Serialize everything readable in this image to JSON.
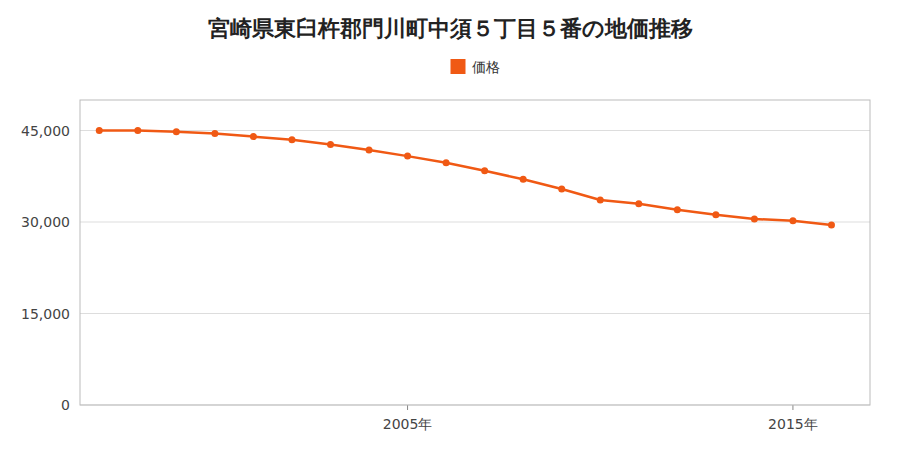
{
  "chart_data": {
    "type": "line",
    "title": "宮崎県東臼杵郡門川町中須５丁目５番の地価推移",
    "x": [
      1997,
      1998,
      1999,
      2000,
      2001,
      2002,
      2003,
      2004,
      2005,
      2006,
      2007,
      2008,
      2009,
      2010,
      2011,
      2012,
      2013,
      2014,
      2015,
      2016
    ],
    "series": [
      {
        "name": "価格",
        "color": "#f05914",
        "marker": "circle",
        "values": [
          45000,
          45000,
          44800,
          44500,
          44000,
          43500,
          42700,
          41800,
          40800,
          39700,
          38400,
          37000,
          35400,
          33600,
          33000,
          32000,
          31200,
          30500,
          30200,
          29500
        ]
      }
    ],
    "xlim": [
      1996.5,
      2017.0
    ],
    "xticks": [
      {
        "value": 2005,
        "label": "2005年"
      },
      {
        "value": 2015,
        "label": "2015年"
      }
    ],
    "ylim": [
      0,
      50000
    ],
    "yticks": [
      0,
      {
        "value": 15000,
        "label": "15,000"
      },
      {
        "value": 30000,
        "label": "30,000"
      },
      {
        "value": 45000,
        "label": "45,000"
      }
    ],
    "grid": true,
    "legend": "top"
  }
}
